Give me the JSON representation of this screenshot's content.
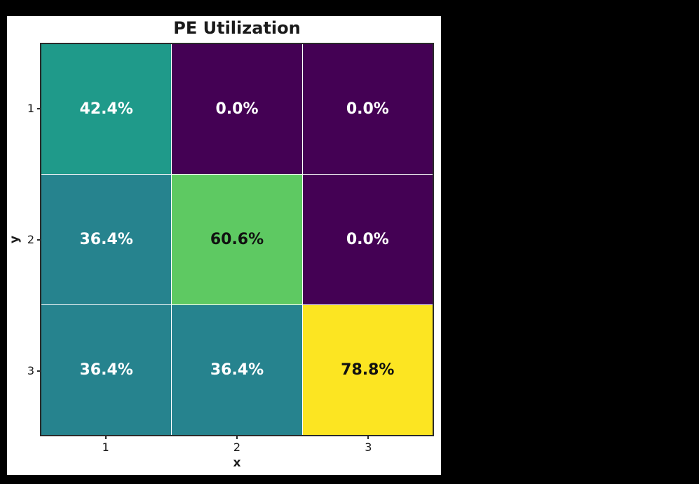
{
  "figure": {
    "page_background": "#000000",
    "canvas_background": "#ffffff"
  },
  "chart_data": {
    "type": "heatmap",
    "title": "PE Utilization",
    "xlabel": "x",
    "ylabel": "y",
    "x_tick_labels": [
      "1",
      "2",
      "3"
    ],
    "y_tick_labels": [
      "1",
      "2",
      "3"
    ],
    "values": [
      [
        42.4,
        0.0,
        0.0
      ],
      [
        36.4,
        60.6,
        0.0
      ],
      [
        36.4,
        36.4,
        78.8
      ]
    ],
    "cell_labels": [
      [
        "42.4%",
        "0.0%",
        "0.0%"
      ],
      [
        "36.4%",
        "60.6%",
        "0.0%"
      ],
      [
        "36.4%",
        "36.4%",
        "78.8%"
      ]
    ],
    "cell_colors": [
      [
        "#1f9a8a",
        "#440154",
        "#440154"
      ],
      [
        "#26838e",
        "#5ec962",
        "#440154"
      ],
      [
        "#26838e",
        "#26838e",
        "#fce522"
      ]
    ],
    "text_colors": [
      [
        "#ffffff",
        "#ffffff",
        "#ffffff"
      ],
      [
        "#ffffff",
        "#111111",
        "#ffffff"
      ],
      [
        "#ffffff",
        "#ffffff",
        "#111111"
      ]
    ],
    "colormap": "viridis",
    "vmin": 0,
    "vmax": 78.8,
    "grid_line_color": "#ffffff",
    "spine_color": "#2b2b2b",
    "legend": "none",
    "grid": "cell-borders-only"
  }
}
